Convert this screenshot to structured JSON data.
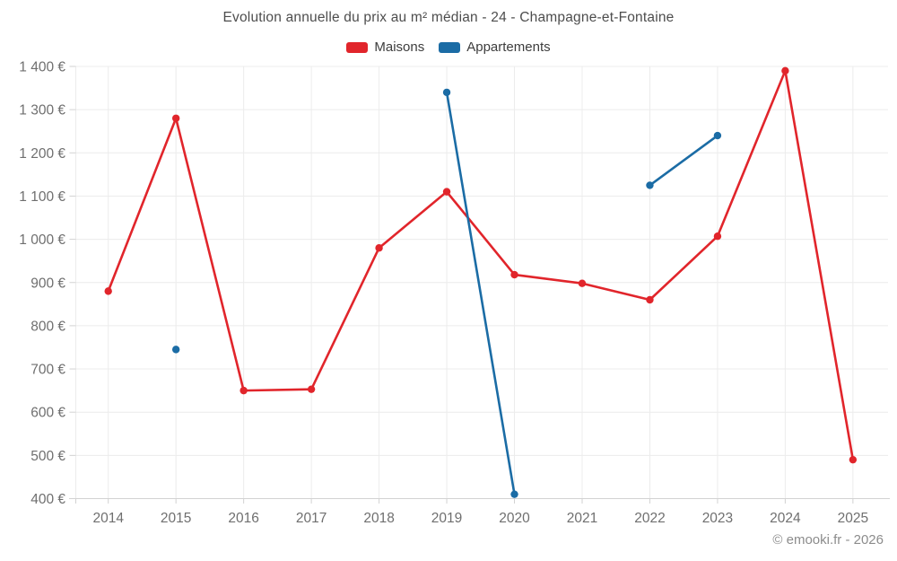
{
  "header": {
    "title": "Evolution annuelle du prix au m² médian - 24 - Champagne-et-Fontaine"
  },
  "footer": {
    "credit": "© emooki.fr - 2026"
  },
  "colors": {
    "maisons": "#e1252b",
    "appartements": "#1b6ca5",
    "grid": "#ececec",
    "axis": "#d2d2d2",
    "tick_label": "#6f6f6f"
  },
  "chart_data": {
    "type": "line",
    "title": "Evolution annuelle du prix au m² médian - 24 - Champagne-et-Fontaine",
    "categories": [
      "2014",
      "2015",
      "2016",
      "2017",
      "2018",
      "2019",
      "2020",
      "2021",
      "2022",
      "2023",
      "2024",
      "2025"
    ],
    "series": [
      {
        "name": "Maisons",
        "color": "#e1252b",
        "values": [
          880,
          1280,
          650,
          653,
          980,
          1110,
          918,
          898,
          860,
          1007,
          1390,
          490
        ]
      },
      {
        "name": "Appartements",
        "color": "#1b6ca5",
        "values": [
          null,
          745,
          null,
          null,
          null,
          1340,
          410,
          null,
          1125,
          1240,
          null,
          null
        ]
      }
    ],
    "xlabel": "",
    "ylabel": "",
    "ylim": [
      400,
      1400
    ],
    "ytick_step": 100,
    "ytick_values": [
      400,
      500,
      600,
      700,
      800,
      900,
      1000,
      1100,
      1200,
      1300,
      1400
    ],
    "ytick_labels": [
      "400 €",
      "500 €",
      "600 €",
      "700 €",
      "800 €",
      "900 €",
      "1 000 €",
      "1 100 €",
      "1 200 €",
      "1 300 €",
      "1 400 €"
    ],
    "grid": true,
    "legend_position": "top",
    "unit": "€"
  }
}
